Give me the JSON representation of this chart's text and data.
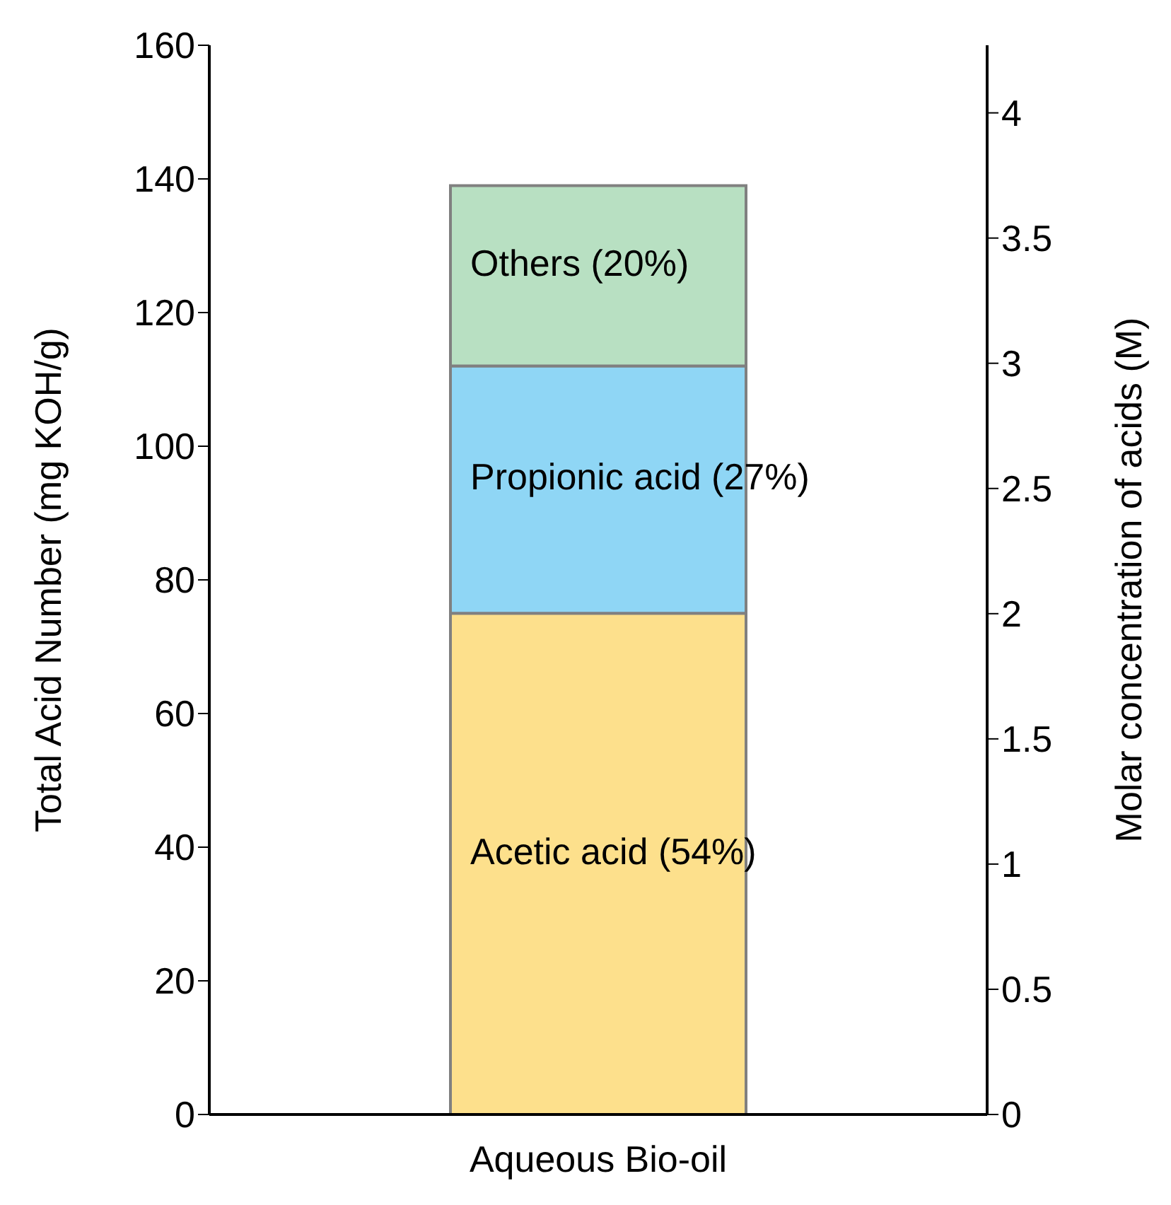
{
  "chart_data": {
    "type": "bar",
    "stacked": true,
    "categories": [
      "Aqueous Bio-oil"
    ],
    "series": [
      {
        "name": "Acetic acid (54%)",
        "color": "#fde08c",
        "values": [
          75
        ]
      },
      {
        "name": "Propionic acid (27%)",
        "color": "#8fd6f5",
        "values": [
          37
        ]
      },
      {
        "name": "Others (20%)",
        "color": "#b8e0c2",
        "values": [
          27
        ]
      }
    ],
    "ylabel": "Total Acid Number (mg KOH/g)",
    "y2label": "Molar concentration of acids (M)",
    "ylim": [
      0,
      160
    ],
    "yticks": [
      0,
      20,
      40,
      60,
      80,
      100,
      120,
      140,
      160
    ],
    "y2lim": [
      0,
      4.27
    ],
    "y2ticks": [
      0,
      0.5,
      1,
      1.5,
      2,
      2.5,
      3,
      3.5,
      4
    ],
    "grid": false
  }
}
